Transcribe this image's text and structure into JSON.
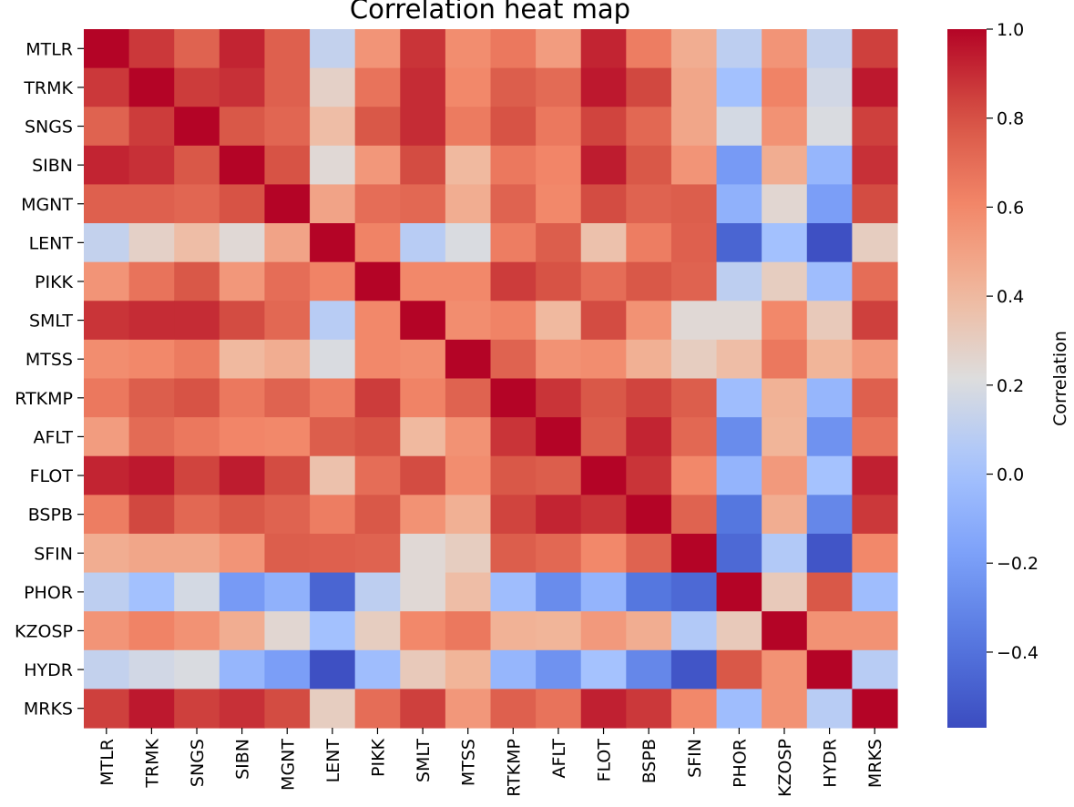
{
  "chart_data": {
    "type": "heatmap",
    "title": "Correlation heat map",
    "colorbar_label": "Correlation",
    "colormap": "coolwarm",
    "vmin": -0.57,
    "vmax": 1.0,
    "colorbar_ticks": [
      {
        "value": 1.0,
        "label": "1.0"
      },
      {
        "value": 0.8,
        "label": "0.8"
      },
      {
        "value": 0.6,
        "label": "0.6"
      },
      {
        "value": 0.4,
        "label": "0.4"
      },
      {
        "value": 0.2,
        "label": "0.2"
      },
      {
        "value": 0.0,
        "label": "0.0"
      },
      {
        "value": -0.2,
        "label": "−0.2"
      },
      {
        "value": -0.4,
        "label": "−0.4"
      }
    ],
    "labels": [
      "MTLR",
      "TRMK",
      "SNGS",
      "SIBN",
      "MGNT",
      "LENT",
      "PIKK",
      "SMLT",
      "MTSS",
      "RTKMP",
      "AFLT",
      "FLOT",
      "BSPB",
      "SFIN",
      "PHOR",
      "KZOSP",
      "HYDR",
      "MRKS"
    ],
    "matrix": [
      [
        1.0,
        0.87,
        0.74,
        0.92,
        0.75,
        0.12,
        0.55,
        0.88,
        0.58,
        0.66,
        0.52,
        0.92,
        0.64,
        0.45,
        0.1,
        0.55,
        0.12,
        0.85
      ],
      [
        0.87,
        1.0,
        0.86,
        0.89,
        0.75,
        0.28,
        0.68,
        0.9,
        0.6,
        0.76,
        0.71,
        0.95,
        0.83,
        0.48,
        0.0,
        0.62,
        0.17,
        0.95
      ],
      [
        0.74,
        0.86,
        1.0,
        0.78,
        0.73,
        0.38,
        0.78,
        0.9,
        0.65,
        0.8,
        0.66,
        0.84,
        0.72,
        0.48,
        0.18,
        0.56,
        0.2,
        0.85
      ],
      [
        0.92,
        0.89,
        0.78,
        1.0,
        0.8,
        0.24,
        0.54,
        0.82,
        0.4,
        0.66,
        0.61,
        0.94,
        0.78,
        0.55,
        -0.21,
        0.45,
        -0.06,
        0.89
      ],
      [
        0.75,
        0.75,
        0.73,
        0.8,
        1.0,
        0.49,
        0.7,
        0.72,
        0.45,
        0.74,
        0.6,
        0.82,
        0.74,
        0.76,
        -0.09,
        0.25,
        -0.19,
        0.82
      ],
      [
        0.12,
        0.28,
        0.38,
        0.24,
        0.49,
        1.0,
        0.62,
        0.08,
        0.2,
        0.64,
        0.76,
        0.36,
        0.64,
        0.75,
        -0.46,
        0.0,
        -0.55,
        0.3
      ],
      [
        0.55,
        0.68,
        0.78,
        0.54,
        0.7,
        0.62,
        1.0,
        0.6,
        0.6,
        0.86,
        0.8,
        0.7,
        0.78,
        0.74,
        0.1,
        0.3,
        -0.02,
        0.7
      ],
      [
        0.88,
        0.9,
        0.9,
        0.82,
        0.72,
        0.08,
        0.6,
        1.0,
        0.58,
        0.62,
        0.4,
        0.82,
        0.56,
        0.24,
        0.24,
        0.6,
        0.32,
        0.85
      ],
      [
        0.58,
        0.6,
        0.65,
        0.4,
        0.45,
        0.2,
        0.6,
        0.58,
        1.0,
        0.74,
        0.56,
        0.58,
        0.44,
        0.3,
        0.38,
        0.66,
        0.42,
        0.54
      ],
      [
        0.66,
        0.76,
        0.8,
        0.66,
        0.74,
        0.64,
        0.86,
        0.62,
        0.74,
        1.0,
        0.88,
        0.78,
        0.84,
        0.76,
        -0.02,
        0.43,
        -0.06,
        0.75
      ],
      [
        0.52,
        0.71,
        0.66,
        0.61,
        0.6,
        0.76,
        0.8,
        0.4,
        0.56,
        0.88,
        1.0,
        0.76,
        0.92,
        0.72,
        -0.28,
        0.42,
        -0.25,
        0.68
      ],
      [
        0.92,
        0.95,
        0.84,
        0.94,
        0.82,
        0.36,
        0.7,
        0.82,
        0.58,
        0.78,
        0.76,
        1.0,
        0.88,
        0.6,
        -0.07,
        0.53,
        0.01,
        0.93
      ],
      [
        0.64,
        0.83,
        0.72,
        0.78,
        0.74,
        0.64,
        0.78,
        0.56,
        0.44,
        0.84,
        0.92,
        0.88,
        1.0,
        0.74,
        -0.38,
        0.45,
        -0.3,
        0.87
      ],
      [
        0.45,
        0.48,
        0.48,
        0.55,
        0.76,
        0.75,
        0.74,
        0.24,
        0.3,
        0.76,
        0.72,
        0.6,
        0.74,
        1.0,
        -0.44,
        0.06,
        -0.53,
        0.6
      ],
      [
        0.1,
        0.0,
        0.18,
        -0.21,
        -0.09,
        -0.46,
        0.1,
        0.24,
        0.38,
        -0.02,
        -0.28,
        -0.07,
        -0.38,
        -0.44,
        1.0,
        0.32,
        0.78,
        -0.02
      ],
      [
        0.55,
        0.62,
        0.56,
        0.45,
        0.25,
        0.0,
        0.3,
        0.6,
        0.66,
        0.43,
        0.42,
        0.53,
        0.45,
        0.06,
        0.32,
        1.0,
        0.56,
        0.56
      ],
      [
        0.12,
        0.17,
        0.2,
        -0.06,
        -0.19,
        -0.55,
        -0.02,
        0.32,
        0.42,
        -0.06,
        -0.25,
        0.01,
        -0.3,
        -0.53,
        0.78,
        0.56,
        1.0,
        0.08
      ],
      [
        0.85,
        0.95,
        0.85,
        0.89,
        0.82,
        0.3,
        0.7,
        0.85,
        0.54,
        0.75,
        0.68,
        0.93,
        0.87,
        0.6,
        -0.02,
        0.56,
        0.08,
        1.0
      ]
    ]
  }
}
